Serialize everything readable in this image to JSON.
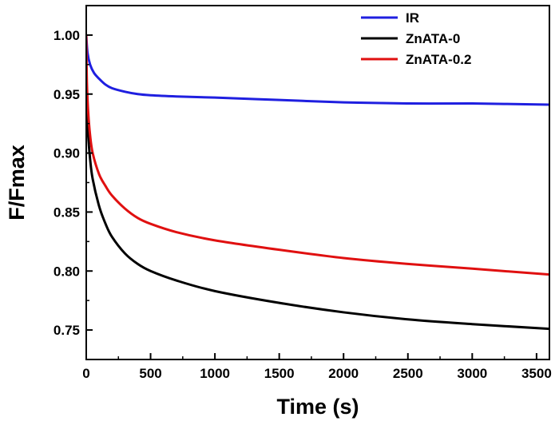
{
  "chart_data": {
    "type": "line",
    "title": "",
    "xlabel": "Time (s)",
    "ylabel": "F/Fmax",
    "xlim": [
      0,
      3600
    ],
    "ylim": [
      0.725,
      1.025
    ],
    "xticks": [
      0,
      500,
      1000,
      1500,
      2000,
      2500,
      3000,
      3500
    ],
    "yticks": [
      0.75,
      0.8,
      0.85,
      0.9,
      0.95,
      1.0
    ],
    "ytick_labels": [
      "0.75",
      "0.80",
      "0.85",
      "0.90",
      "0.95",
      "1.00"
    ],
    "grid": false,
    "legend_position": "top-right",
    "series": [
      {
        "name": "IR",
        "color": "#1f1fe0",
        "x": [
          0,
          10,
          30,
          60,
          100,
          150,
          200,
          300,
          400,
          500,
          700,
          1000,
          1500,
          2000,
          2500,
          3000,
          3600
        ],
        "y": [
          1.0,
          0.985,
          0.975,
          0.968,
          0.963,
          0.958,
          0.955,
          0.952,
          0.95,
          0.949,
          0.948,
          0.947,
          0.945,
          0.943,
          0.942,
          0.942,
          0.941
        ]
      },
      {
        "name": "ZnATA-0",
        "color": "#000000",
        "x": [
          0,
          5,
          15,
          30,
          50,
          100,
          150,
          200,
          300,
          400,
          500,
          700,
          1000,
          1500,
          2000,
          2500,
          3000,
          3600
        ],
        "y": [
          0.965,
          0.94,
          0.915,
          0.895,
          0.878,
          0.855,
          0.84,
          0.829,
          0.815,
          0.806,
          0.8,
          0.792,
          0.783,
          0.773,
          0.765,
          0.759,
          0.755,
          0.751
        ]
      },
      {
        "name": "ZnATA-0.2",
        "color": "#e01010",
        "x": [
          0,
          5,
          15,
          30,
          50,
          100,
          150,
          200,
          300,
          400,
          500,
          700,
          1000,
          1500,
          2000,
          2500,
          3000,
          3600
        ],
        "y": [
          1.0,
          0.96,
          0.935,
          0.915,
          0.9,
          0.882,
          0.872,
          0.864,
          0.853,
          0.845,
          0.84,
          0.833,
          0.826,
          0.818,
          0.811,
          0.806,
          0.802,
          0.797
        ]
      }
    ]
  }
}
